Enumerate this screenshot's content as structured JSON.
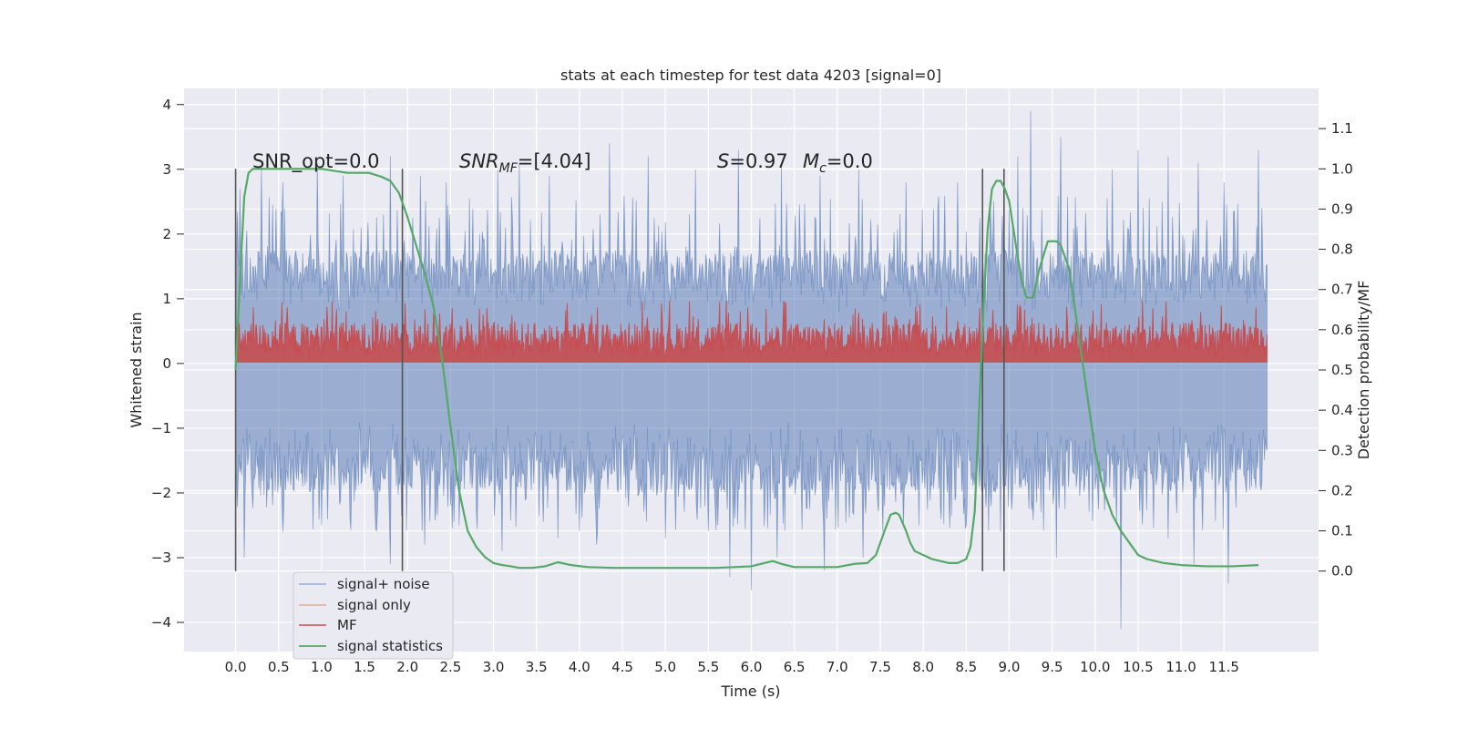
{
  "chart_data": {
    "type": "line",
    "title": "stats at each timestep for test data 4203 [signal=0]",
    "xlabel": "Time (s)",
    "ylabel": "Whitened strain",
    "y2label": "Detection probability/MF",
    "xlim": [
      -0.6,
      12.6
    ],
    "ylim": [
      -4.45,
      4.25
    ],
    "y2lim": [
      -0.2,
      1.2
    ],
    "x_ticks": [
      "0.0",
      "0.5",
      "1.0",
      "1.5",
      "2.0",
      "2.5",
      "3.0",
      "3.5",
      "4.0",
      "4.5",
      "5.0",
      "5.5",
      "6.0",
      "6.5",
      "7.0",
      "7.5",
      "8.0",
      "8.5",
      "9.0",
      "9.5",
      "10.0",
      "10.5",
      "11.0",
      "11.5"
    ],
    "y_ticks": [
      "4",
      "3",
      "2",
      "1",
      "0",
      "−1",
      "−2",
      "−3",
      "−4"
    ],
    "y2_ticks": [
      "1.1",
      "1.0",
      "0.9",
      "0.8",
      "0.7",
      "0.6",
      "0.5",
      "0.4",
      "0.3",
      "0.2",
      "0.1",
      "0.0"
    ],
    "grid": true,
    "legend_position": "lower-left",
    "legend": [
      "signal+ noise",
      "signal only",
      "MF",
      "signal statistics"
    ],
    "colors": {
      "signal_noise": "#4c72b0",
      "signal_only": "#dd8452",
      "mf": "#c44e52",
      "signal_statistics": "#55a868",
      "background": "#eaeaf2",
      "vline": "#555555"
    },
    "annotations": {
      "snr_opt": "SNR_opt=0.0",
      "snr_mf_sym": "SNR",
      "snr_mf_sub": "MF",
      "snr_mf_val": "=[4.04]",
      "s_sym": "S",
      "s_val": "=0.97",
      "mc_sym": "M",
      "mc_sub": "c",
      "mc_val": "=0.0"
    },
    "vertical_lines": [
      0.0,
      1.94,
      8.69,
      8.94
    ],
    "signal_noise": {
      "t_start": 0.0,
      "t_end": 12.0,
      "band_upper": 1.75,
      "band_lower": -2.0,
      "spikes_up": [
        [
          0.05,
          2.7
        ],
        [
          0.3,
          3.0
        ],
        [
          0.55,
          2.8
        ],
        [
          0.95,
          3.1
        ],
        [
          1.25,
          2.9
        ],
        [
          1.8,
          3.2
        ],
        [
          2.15,
          2.9
        ],
        [
          2.45,
          2.8
        ],
        [
          3.05,
          3.0
        ],
        [
          3.3,
          3.1
        ],
        [
          3.65,
          2.9
        ],
        [
          4.35,
          3.4
        ],
        [
          4.8,
          3.2
        ],
        [
          5.35,
          3.0
        ],
        [
          5.85,
          3.3
        ],
        [
          6.35,
          3.1
        ],
        [
          6.8,
          2.9
        ],
        [
          7.25,
          3.0
        ],
        [
          7.8,
          2.8
        ],
        [
          8.4,
          2.8
        ],
        [
          9.1,
          3.2
        ],
        [
          9.25,
          3.9
        ],
        [
          9.6,
          3.5
        ],
        [
          10.2,
          3.0
        ],
        [
          10.5,
          3.3
        ],
        [
          10.85,
          3.2
        ],
        [
          11.2,
          3.1
        ],
        [
          11.5,
          2.8
        ],
        [
          11.9,
          3.3
        ]
      ],
      "spikes_down": [
        [
          0.1,
          -3.0
        ],
        [
          0.55,
          -2.6
        ],
        [
          1.0,
          -2.5
        ],
        [
          1.8,
          -3.1
        ],
        [
          2.2,
          -2.8
        ],
        [
          2.6,
          -2.5
        ],
        [
          3.1,
          -2.9
        ],
        [
          3.75,
          -2.7
        ],
        [
          4.2,
          -2.8
        ],
        [
          5.0,
          -2.7
        ],
        [
          5.75,
          -3.3
        ],
        [
          6.0,
          -3.5
        ],
        [
          6.3,
          -3.0
        ],
        [
          6.85,
          -3.2
        ],
        [
          7.3,
          -3.0
        ],
        [
          7.95,
          -2.5
        ],
        [
          8.5,
          -2.5
        ],
        [
          8.9,
          -2.6
        ],
        [
          9.55,
          -3.0
        ],
        [
          10.3,
          -4.1
        ],
        [
          10.85,
          -2.7
        ],
        [
          11.15,
          -3.1
        ],
        [
          11.55,
          -3.4
        ]
      ]
    },
    "mf": {
      "base": 0.02,
      "mid": 0.37,
      "amplitude": 0.35,
      "peak_max": 0.98
    },
    "signal_statistics": {
      "x": [
        0.0,
        0.05,
        0.1,
        0.15,
        0.2,
        0.3,
        0.5,
        0.8,
        1.0,
        1.3,
        1.55,
        1.7,
        1.8,
        1.9,
        2.0,
        2.1,
        2.2,
        2.3,
        2.4,
        2.5,
        2.6,
        2.7,
        2.8,
        2.9,
        3.0,
        3.1,
        3.2,
        3.3,
        3.45,
        3.6,
        3.75,
        3.9,
        4.1,
        4.4,
        4.7,
        5.0,
        5.3,
        5.6,
        5.8,
        6.0,
        6.15,
        6.25,
        6.35,
        6.5,
        6.8,
        7.0,
        7.2,
        7.35,
        7.45,
        7.55,
        7.62,
        7.68,
        7.72,
        7.8,
        7.85,
        7.9,
        8.0,
        8.1,
        8.2,
        8.3,
        8.4,
        8.5,
        8.55,
        8.6,
        8.65,
        8.7,
        8.75,
        8.8,
        8.85,
        8.9,
        8.95,
        9.0,
        9.05,
        9.1,
        9.15,
        9.2,
        9.28,
        9.35,
        9.45,
        9.55,
        9.6,
        9.7,
        9.8,
        9.9,
        10.0,
        10.1,
        10.2,
        10.3,
        10.4,
        10.5,
        10.6,
        10.7,
        10.8,
        11.0,
        11.3,
        11.6,
        11.9
      ],
      "y": [
        0.5,
        0.72,
        0.93,
        0.99,
        1.0,
        1.0,
        1.0,
        1.0,
        1.0,
        0.99,
        0.99,
        0.98,
        0.97,
        0.94,
        0.88,
        0.81,
        0.74,
        0.66,
        0.53,
        0.36,
        0.2,
        0.1,
        0.06,
        0.035,
        0.02,
        0.015,
        0.012,
        0.008,
        0.008,
        0.012,
        0.022,
        0.015,
        0.01,
        0.008,
        0.008,
        0.008,
        0.008,
        0.008,
        0.01,
        0.012,
        0.02,
        0.025,
        0.018,
        0.01,
        0.01,
        0.01,
        0.018,
        0.02,
        0.04,
        0.1,
        0.14,
        0.145,
        0.14,
        0.1,
        0.07,
        0.05,
        0.04,
        0.03,
        0.025,
        0.02,
        0.02,
        0.03,
        0.06,
        0.15,
        0.4,
        0.65,
        0.85,
        0.95,
        0.97,
        0.97,
        0.95,
        0.92,
        0.85,
        0.78,
        0.72,
        0.68,
        0.68,
        0.75,
        0.82,
        0.82,
        0.81,
        0.75,
        0.6,
        0.45,
        0.3,
        0.2,
        0.14,
        0.1,
        0.07,
        0.04,
        0.03,
        0.025,
        0.02,
        0.015,
        0.012,
        0.012,
        0.015
      ]
    }
  }
}
